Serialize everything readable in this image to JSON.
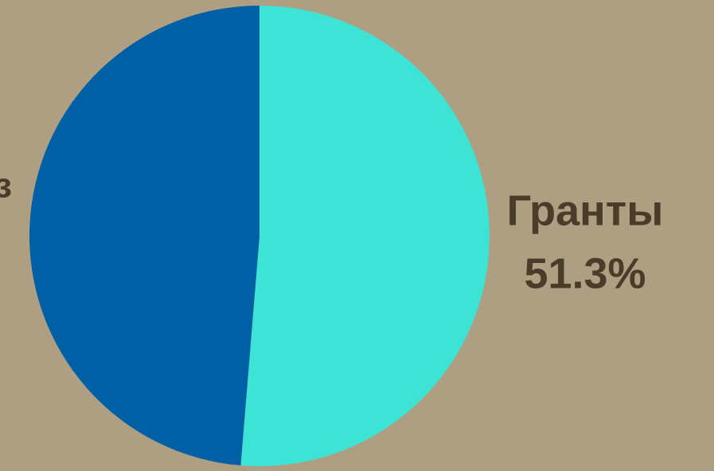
{
  "chart_data": {
    "type": "pie",
    "categories": [
      "Гранты",
      null
    ],
    "values": [
      51.3,
      48.7
    ],
    "value_labels": [
      "51.3%",
      null
    ],
    "colors": [
      "#3de3d5",
      "#0060a6"
    ],
    "annotations": [
      "з"
    ]
  }
}
